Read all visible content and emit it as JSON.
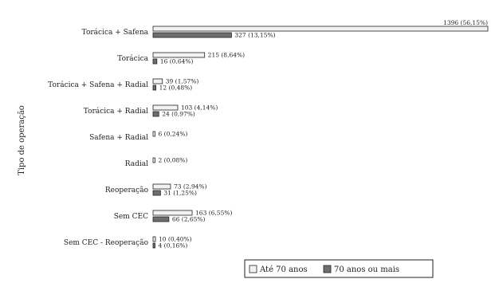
{
  "chart_data": {
    "type": "bar",
    "orientation": "horizontal",
    "title": "",
    "xlabel": "",
    "ylabel": "Tipo de operação",
    "categories": [
      "Torácica + Safena",
      "Torácica",
      "Torácica + Safena + Radial",
      "Torácica + Radial",
      "Safena + Radial",
      "Radial",
      "Reoperação",
      "Sem CEC",
      "Sem CEC - Reoperação"
    ],
    "series": [
      {
        "name": "Até 70 anos",
        "color": "#f2f2f2",
        "values": [
          1396,
          215,
          39,
          103,
          6,
          2,
          73,
          163,
          10
        ],
        "labels": [
          "1396 (56,15%)",
          "215 (8,64%)",
          "39 (1,57%)",
          "103 (4,14%)",
          "6 (0,24%)",
          "2 (0,08%)",
          "73 (2,94%)",
          "163 (6,55%)",
          "10 (0,40%)"
        ]
      },
      {
        "name": "70 anos ou mais",
        "color": "#6e6e6e",
        "values": [
          327,
          16,
          12,
          24,
          0,
          0,
          31,
          66,
          4
        ],
        "labels": [
          "327 (13,15%)",
          "16 (0,64%)",
          "12 (0,48%)",
          "24 (0,97%)",
          "",
          "",
          "31 (1,25%)",
          "66 (2,65%)",
          "4 (0,16%)"
        ]
      }
    ],
    "xlim": [
      0,
      1396
    ],
    "grid": false,
    "legend_position": "bottom-right"
  }
}
